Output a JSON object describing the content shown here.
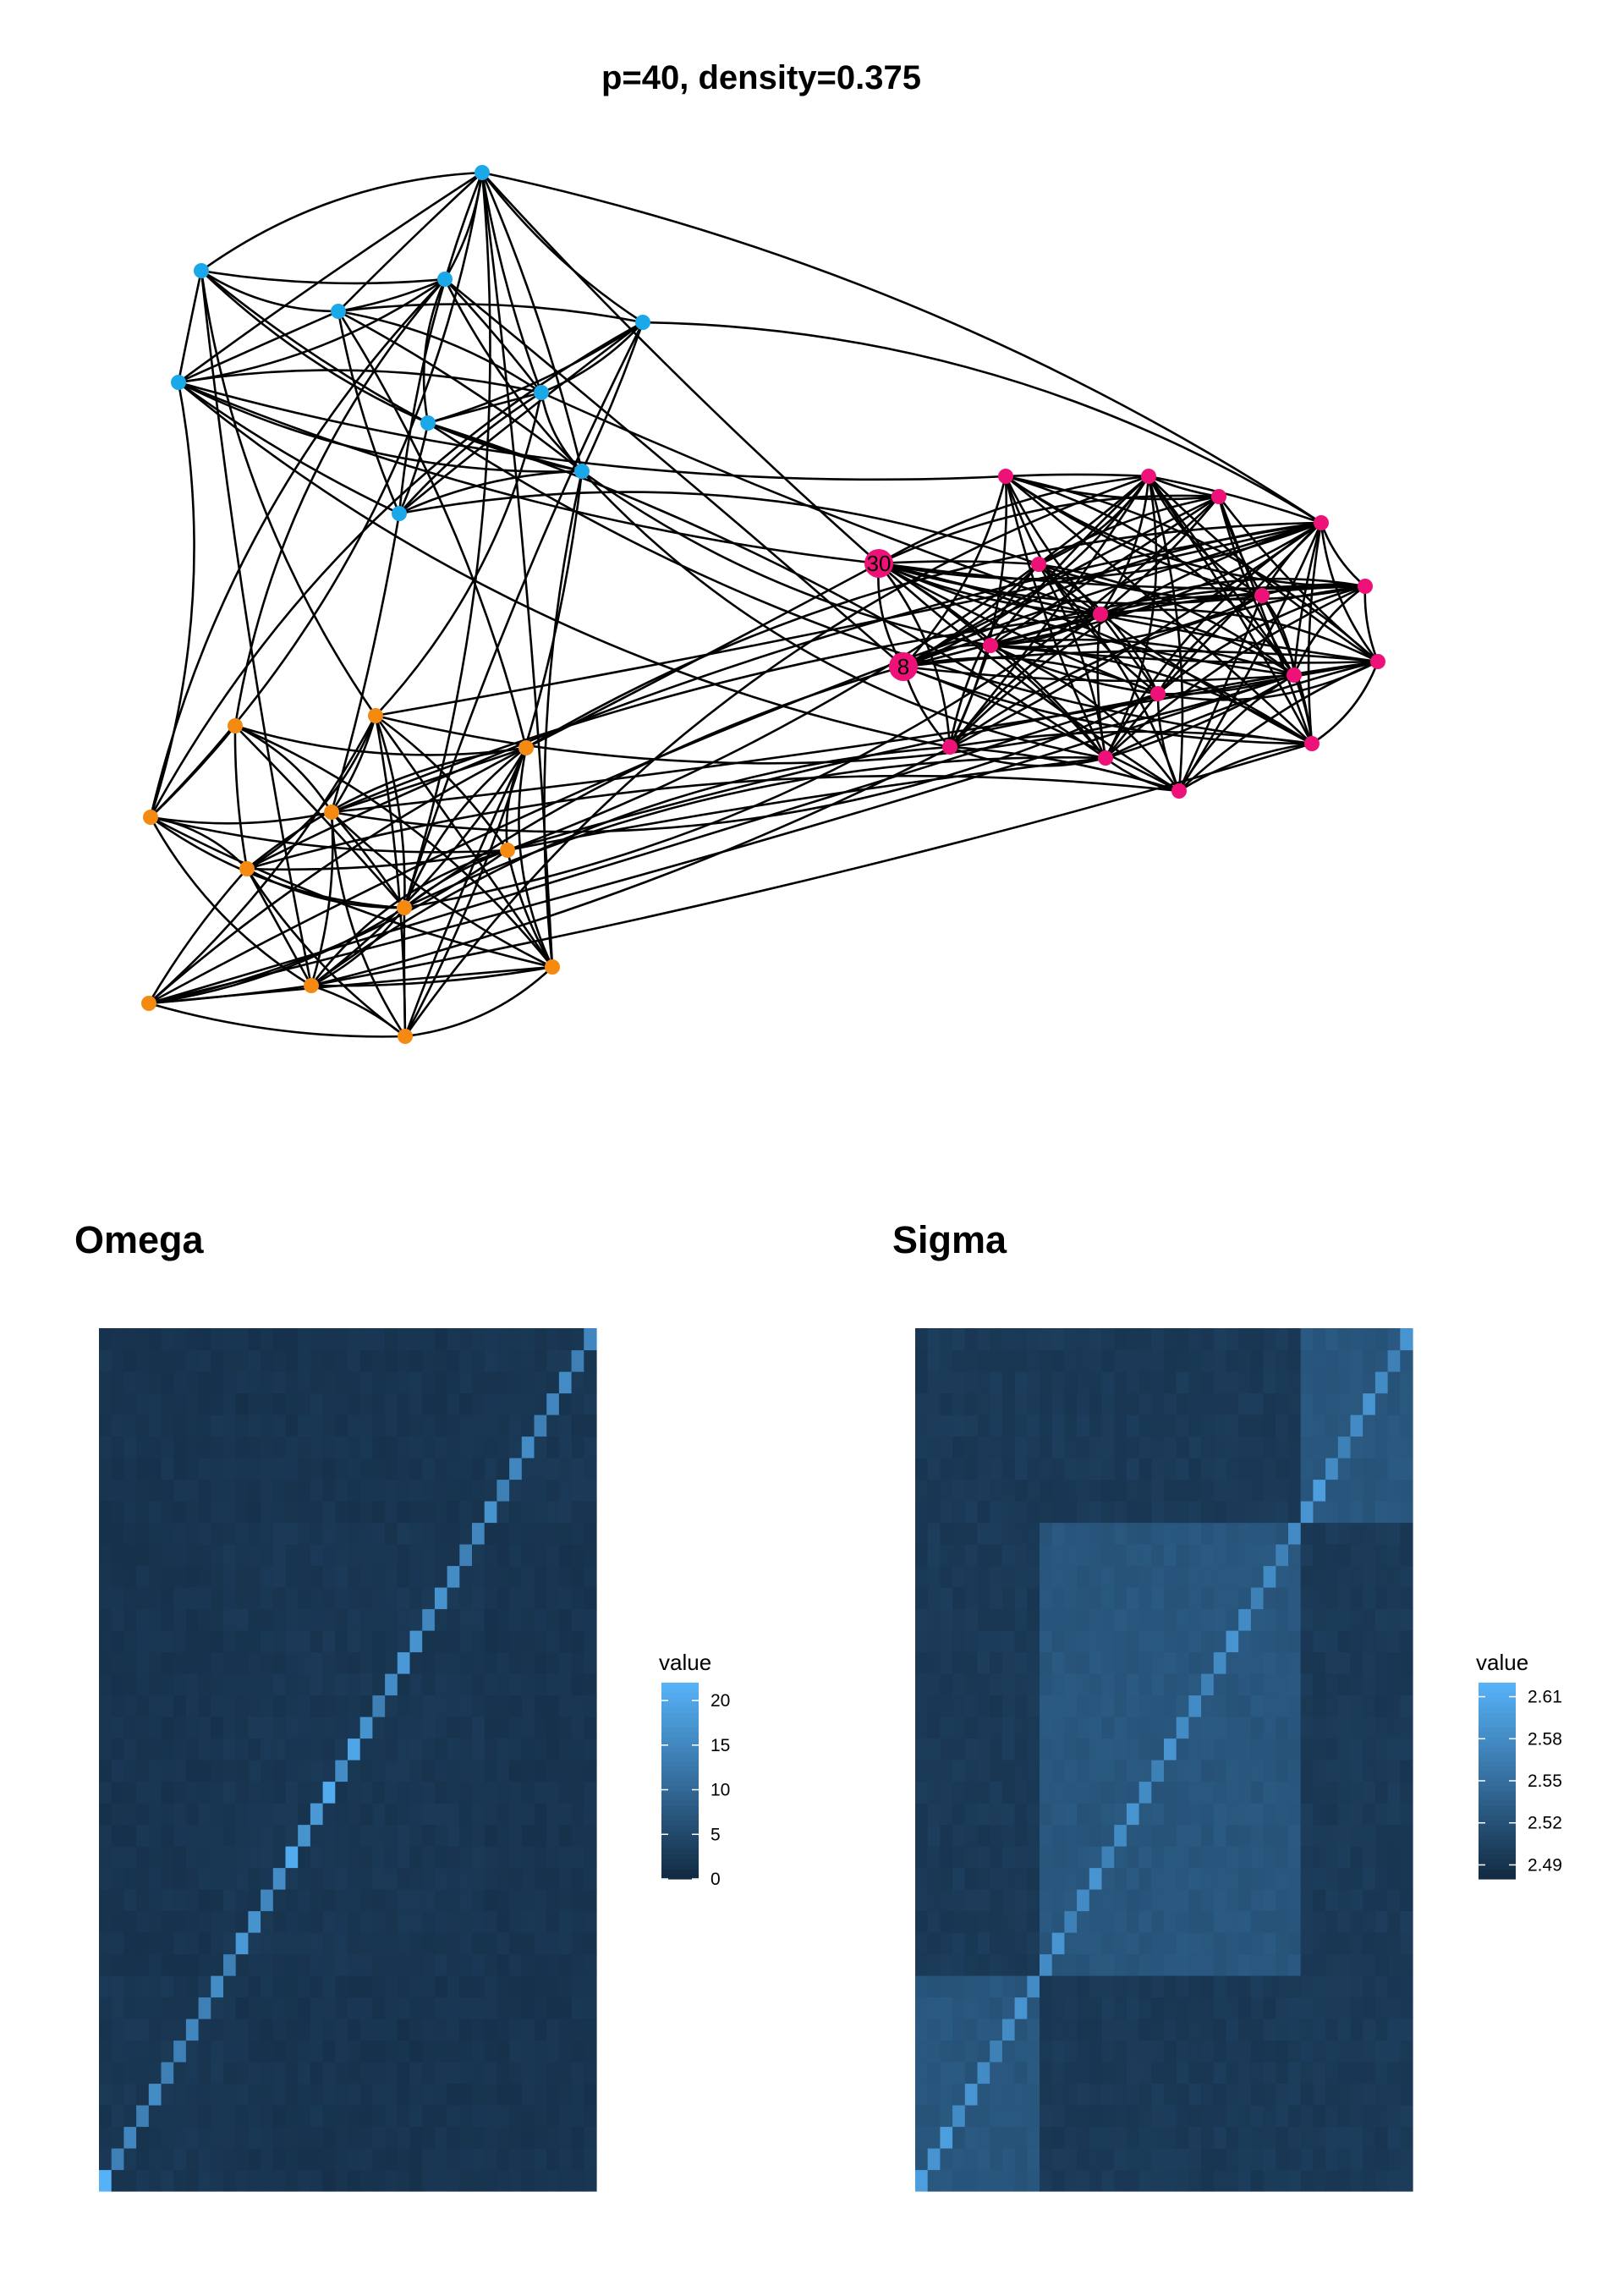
{
  "graph": {
    "title": "p=40, density=0.375",
    "group_colors": {
      "blue": "#1aa8e8",
      "orange": "#f58a13",
      "pink": "#ee1177"
    },
    "labeled_nodes": [
      "30",
      "8"
    ]
  },
  "chart_data": [
    {
      "type": "heatmap",
      "title": "Omega",
      "n": 40,
      "legend": {
        "title": "value",
        "ticks": [
          "0",
          "5",
          "10",
          "15",
          "20"
        ],
        "range": [
          0,
          22
        ]
      },
      "diagonal": [
        22,
        14,
        15,
        14,
        16,
        14,
        14,
        15,
        14,
        16,
        14,
        18,
        17,
        15,
        16,
        21,
        17,
        18,
        21,
        16,
        20,
        17,
        14,
        16,
        18,
        17,
        15,
        17,
        16,
        14,
        15,
        17,
        14,
        15,
        16,
        14,
        15,
        16,
        14,
        15
      ],
      "off_diagonal_typical": 1.5
    },
    {
      "type": "heatmap",
      "title": "Sigma",
      "n": 40,
      "legend": {
        "title": "value",
        "ticks": [
          "2.49",
          "2.52",
          "2.55",
          "2.58",
          "2.61"
        ],
        "range": [
          2.48,
          2.62
        ]
      },
      "diagonal": [
        2.6,
        2.59,
        2.6,
        2.58,
        2.59,
        2.58,
        2.57,
        2.58,
        2.59,
        2.58,
        2.58,
        2.59,
        2.57,
        2.58,
        2.59,
        2.57,
        2.58,
        2.59,
        2.58,
        2.57,
        2.59,
        2.58,
        2.58,
        2.57,
        2.58,
        2.59,
        2.58,
        2.57,
        2.58,
        2.57,
        2.58,
        2.59,
        2.6,
        2.58,
        2.57,
        2.58,
        2.59,
        2.58,
        2.57,
        2.59
      ],
      "block_values": {
        "within_block": 2.525,
        "between_block": 2.495
      }
    }
  ]
}
